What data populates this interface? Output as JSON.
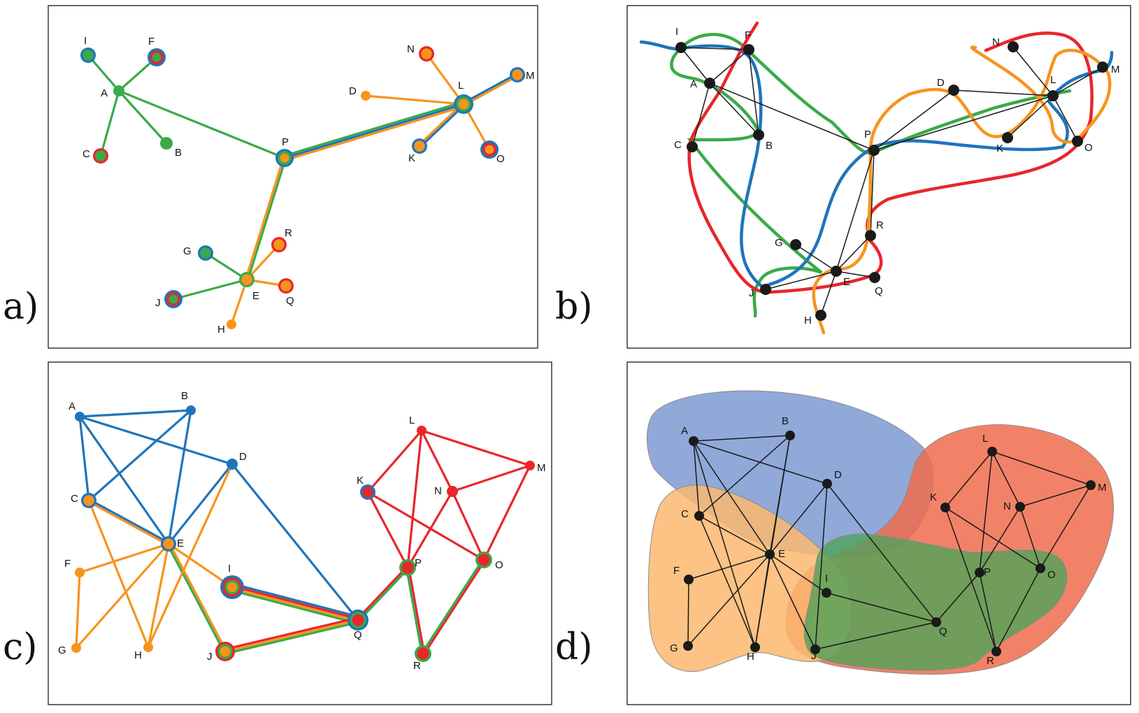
{
  "colors": {
    "green": "#3aaa48",
    "orange": "#f7941d",
    "blue": "#1f74bb",
    "red": "#e8262b",
    "black": "#1a1a1a"
  },
  "panels": {
    "a": {
      "label": "a)",
      "nodes": [
        {
          "id": "I",
          "fill": "green",
          "rings": [
            "blue"
          ],
          "r": 11
        },
        {
          "id": "F",
          "fill": "green",
          "rings": [
            "red",
            "blue"
          ],
          "r": 13
        },
        {
          "id": "A",
          "fill": "green",
          "rings": [],
          "r": 8
        },
        {
          "id": "C",
          "fill": "green",
          "rings": [
            "red"
          ],
          "r": 11
        },
        {
          "id": "B",
          "fill": "green",
          "rings": [],
          "r": 9
        },
        {
          "id": "P",
          "fill": "orange",
          "rings": [
            "green",
            "blue"
          ],
          "r": 13
        },
        {
          "id": "N",
          "fill": "orange",
          "rings": [
            "red"
          ],
          "r": 11
        },
        {
          "id": "D",
          "fill": "orange",
          "rings": [],
          "r": 7
        },
        {
          "id": "L",
          "fill": "orange",
          "rings": [
            "green",
            "blue"
          ],
          "r": 14
        },
        {
          "id": "M",
          "fill": "orange",
          "rings": [
            "blue"
          ],
          "r": 11
        },
        {
          "id": "K",
          "fill": "orange",
          "rings": [
            "blue"
          ],
          "r": 11
        },
        {
          "id": "O",
          "fill": "orange",
          "rings": [
            "red",
            "blue"
          ],
          "r": 13
        },
        {
          "id": "G",
          "fill": "green",
          "rings": [
            "blue"
          ],
          "r": 11
        },
        {
          "id": "R",
          "fill": "orange",
          "rings": [
            "red"
          ],
          "r": 11
        },
        {
          "id": "E",
          "fill": "orange",
          "rings": [
            "green"
          ],
          "r": 11
        },
        {
          "id": "J",
          "fill": "green",
          "rings": [
            "red",
            "blue"
          ],
          "r": 13
        },
        {
          "id": "Q",
          "fill": "orange",
          "rings": [
            "red"
          ],
          "r": 11
        },
        {
          "id": "H",
          "fill": "orange",
          "rings": [],
          "r": 7
        }
      ],
      "edges": [
        {
          "a": "A",
          "b": "I",
          "c": [
            "green"
          ]
        },
        {
          "a": "A",
          "b": "F",
          "c": [
            "green"
          ]
        },
        {
          "a": "A",
          "b": "C",
          "c": [
            "green"
          ]
        },
        {
          "a": "A",
          "b": "B",
          "c": [
            "green"
          ]
        },
        {
          "a": "A",
          "b": "P",
          "c": [
            "green"
          ]
        },
        {
          "a": "P",
          "b": "L",
          "c": [
            "green",
            "blue",
            "orange"
          ]
        },
        {
          "a": "P",
          "b": "E",
          "c": [
            "green",
            "orange"
          ]
        },
        {
          "a": "L",
          "b": "N",
          "c": [
            "orange"
          ]
        },
        {
          "a": "L",
          "b": "D",
          "c": [
            "orange"
          ]
        },
        {
          "a": "L",
          "b": "M",
          "c": [
            "blue",
            "orange"
          ]
        },
        {
          "a": "L",
          "b": "K",
          "c": [
            "blue",
            "orange"
          ]
        },
        {
          "a": "L",
          "b": "O",
          "c": [
            "orange"
          ]
        },
        {
          "a": "E",
          "b": "G",
          "c": [
            "green"
          ]
        },
        {
          "a": "E",
          "b": "J",
          "c": [
            "green"
          ]
        },
        {
          "a": "E",
          "b": "R",
          "c": [
            "orange"
          ]
        },
        {
          "a": "E",
          "b": "Q",
          "c": [
            "orange"
          ]
        },
        {
          "a": "E",
          "b": "H",
          "c": [
            "orange"
          ]
        }
      ]
    },
    "b": {
      "label": "b)",
      "nodes": [
        "I",
        "F",
        "A",
        "C",
        "B",
        "P",
        "N",
        "D",
        "L",
        "M",
        "K",
        "O",
        "G",
        "R",
        "E",
        "J",
        "Q",
        "H"
      ],
      "edges": [
        [
          "I",
          "F"
        ],
        [
          "I",
          "A"
        ],
        [
          "A",
          "F"
        ],
        [
          "A",
          "B"
        ],
        [
          "A",
          "C"
        ],
        [
          "A",
          "P"
        ],
        [
          "F",
          "B"
        ],
        [
          "P",
          "L"
        ],
        [
          "P",
          "D"
        ],
        [
          "P",
          "R"
        ],
        [
          "P",
          "E"
        ],
        [
          "D",
          "L"
        ],
        [
          "L",
          "N"
        ],
        [
          "L",
          "M"
        ],
        [
          "L",
          "K"
        ],
        [
          "L",
          "O"
        ],
        [
          "E",
          "G"
        ],
        [
          "E",
          "J"
        ],
        [
          "E",
          "R"
        ],
        [
          "E",
          "Q"
        ],
        [
          "E",
          "H"
        ]
      ],
      "curves": [
        "green",
        "blue",
        "red",
        "orange"
      ]
    },
    "c": {
      "label": "c)",
      "nodes": [
        {
          "id": "A",
          "fill": "blue",
          "rings": [],
          "r": 7
        },
        {
          "id": "B",
          "fill": "blue",
          "rings": [],
          "r": 7
        },
        {
          "id": "D",
          "fill": "blue",
          "rings": [],
          "r": 8
        },
        {
          "id": "C",
          "fill": "orange",
          "rings": [
            "blue"
          ],
          "r": 11
        },
        {
          "id": "E",
          "fill": "orange",
          "rings": [
            "blue"
          ],
          "r": 11
        },
        {
          "id": "F",
          "fill": "orange",
          "rings": [],
          "r": 7
        },
        {
          "id": "G",
          "fill": "orange",
          "rings": [],
          "r": 7
        },
        {
          "id": "H",
          "fill": "orange",
          "rings": [],
          "r": 7
        },
        {
          "id": "I",
          "fill": "orange",
          "rings": [
            "green",
            "red",
            "blue"
          ],
          "r": 17
        },
        {
          "id": "J",
          "fill": "orange",
          "rings": [
            "green",
            "red"
          ],
          "r": 14
        },
        {
          "id": "Q",
          "fill": "red",
          "rings": [
            "green",
            "blue"
          ],
          "r": 15
        },
        {
          "id": "L",
          "fill": "red",
          "rings": [],
          "r": 7
        },
        {
          "id": "M",
          "fill": "red",
          "rings": [],
          "r": 7
        },
        {
          "id": "K",
          "fill": "red",
          "rings": [
            "blue"
          ],
          "r": 11
        },
        {
          "id": "N",
          "fill": "red",
          "rings": [],
          "r": 8
        },
        {
          "id": "P",
          "fill": "red",
          "rings": [
            "green"
          ],
          "r": 12
        },
        {
          "id": "O",
          "fill": "red",
          "rings": [
            "green"
          ],
          "r": 12
        },
        {
          "id": "R",
          "fill": "red",
          "rings": [
            "green"
          ],
          "r": 12
        }
      ],
      "edges": [
        {
          "a": "A",
          "b": "B",
          "c": [
            "blue"
          ]
        },
        {
          "a": "A",
          "b": "D",
          "c": [
            "blue"
          ]
        },
        {
          "a": "A",
          "b": "C",
          "c": [
            "blue"
          ]
        },
        {
          "a": "A",
          "b": "E",
          "c": [
            "blue"
          ]
        },
        {
          "a": "B",
          "b": "C",
          "c": [
            "blue"
          ]
        },
        {
          "a": "B",
          "b": "E",
          "c": [
            "blue"
          ]
        },
        {
          "a": "D",
          "b": "E",
          "c": [
            "blue"
          ]
        },
        {
          "a": "D",
          "b": "Q",
          "c": [
            "blue"
          ]
        },
        {
          "a": "C",
          "b": "E",
          "c": [
            "blue",
            "orange"
          ]
        },
        {
          "a": "C",
          "b": "H",
          "c": [
            "orange"
          ]
        },
        {
          "a": "E",
          "b": "F",
          "c": [
            "orange"
          ]
        },
        {
          "a": "E",
          "b": "G",
          "c": [
            "orange"
          ]
        },
        {
          "a": "E",
          "b": "H",
          "c": [
            "orange"
          ]
        },
        {
          "a": "E",
          "b": "I",
          "c": [
            "orange"
          ]
        },
        {
          "a": "E",
          "b": "J",
          "c": [
            "orange",
            "green"
          ]
        },
        {
          "a": "D",
          "b": "H",
          "c": [
            "orange"
          ]
        },
        {
          "a": "F",
          "b": "G",
          "c": [
            "orange"
          ]
        },
        {
          "a": "I",
          "b": "Q",
          "c": [
            "blue",
            "red",
            "orange",
            "green"
          ]
        },
        {
          "a": "J",
          "b": "Q",
          "c": [
            "red",
            "orange",
            "green"
          ]
        },
        {
          "a": "Q",
          "b": "P",
          "c": [
            "red",
            "green"
          ]
        },
        {
          "a": "P",
          "b": "R",
          "c": [
            "red",
            "green"
          ]
        },
        {
          "a": "O",
          "b": "R",
          "c": [
            "red",
            "green"
          ]
        },
        {
          "a": "L",
          "b": "K",
          "c": [
            "red"
          ]
        },
        {
          "a": "L",
          "b": "N",
          "c": [
            "red"
          ]
        },
        {
          "a": "L",
          "b": "M",
          "c": [
            "red"
          ]
        },
        {
          "a": "L",
          "b": "P",
          "c": [
            "red"
          ]
        },
        {
          "a": "K",
          "b": "P",
          "c": [
            "red"
          ]
        },
        {
          "a": "K",
          "b": "O",
          "c": [
            "red"
          ]
        },
        {
          "a": "N",
          "b": "M",
          "c": [
            "red"
          ]
        },
        {
          "a": "N",
          "b": "P",
          "c": [
            "red"
          ]
        },
        {
          "a": "N",
          "b": "O",
          "c": [
            "red"
          ]
        },
        {
          "a": "M",
          "b": "O",
          "c": [
            "red"
          ]
        }
      ]
    },
    "d": {
      "label": "d)",
      "nodes": [
        "A",
        "B",
        "D",
        "C",
        "E",
        "F",
        "G",
        "H",
        "I",
        "J",
        "Q",
        "L",
        "M",
        "K",
        "N",
        "P",
        "O",
        "R"
      ],
      "edges": [
        [
          "A",
          "B"
        ],
        [
          "A",
          "D"
        ],
        [
          "A",
          "C"
        ],
        [
          "A",
          "E"
        ],
        [
          "A",
          "H"
        ],
        [
          "B",
          "C"
        ],
        [
          "B",
          "E"
        ],
        [
          "B",
          "H"
        ],
        [
          "D",
          "E"
        ],
        [
          "D",
          "J"
        ],
        [
          "D",
          "Q"
        ],
        [
          "C",
          "E"
        ],
        [
          "C",
          "H"
        ],
        [
          "E",
          "F"
        ],
        [
          "E",
          "G"
        ],
        [
          "E",
          "H"
        ],
        [
          "E",
          "I"
        ],
        [
          "E",
          "J"
        ],
        [
          "F",
          "G"
        ],
        [
          "I",
          "Q"
        ],
        [
          "J",
          "Q"
        ],
        [
          "Q",
          "P"
        ],
        [
          "P",
          "L"
        ],
        [
          "P",
          "N"
        ],
        [
          "P",
          "R"
        ],
        [
          "L",
          "K"
        ],
        [
          "L",
          "N"
        ],
        [
          "L",
          "M"
        ],
        [
          "K",
          "O"
        ],
        [
          "N",
          "M"
        ],
        [
          "N",
          "O"
        ],
        [
          "M",
          "O"
        ],
        [
          "O",
          "R"
        ],
        [
          "K",
          "R"
        ]
      ],
      "regions": [
        {
          "name": "blue",
          "color": "#7c9ad2"
        },
        {
          "name": "red",
          "color": "#f06c4c"
        },
        {
          "name": "orange",
          "color": "#fbb970"
        },
        {
          "name": "green",
          "color": "#4fa25a"
        }
      ]
    }
  }
}
